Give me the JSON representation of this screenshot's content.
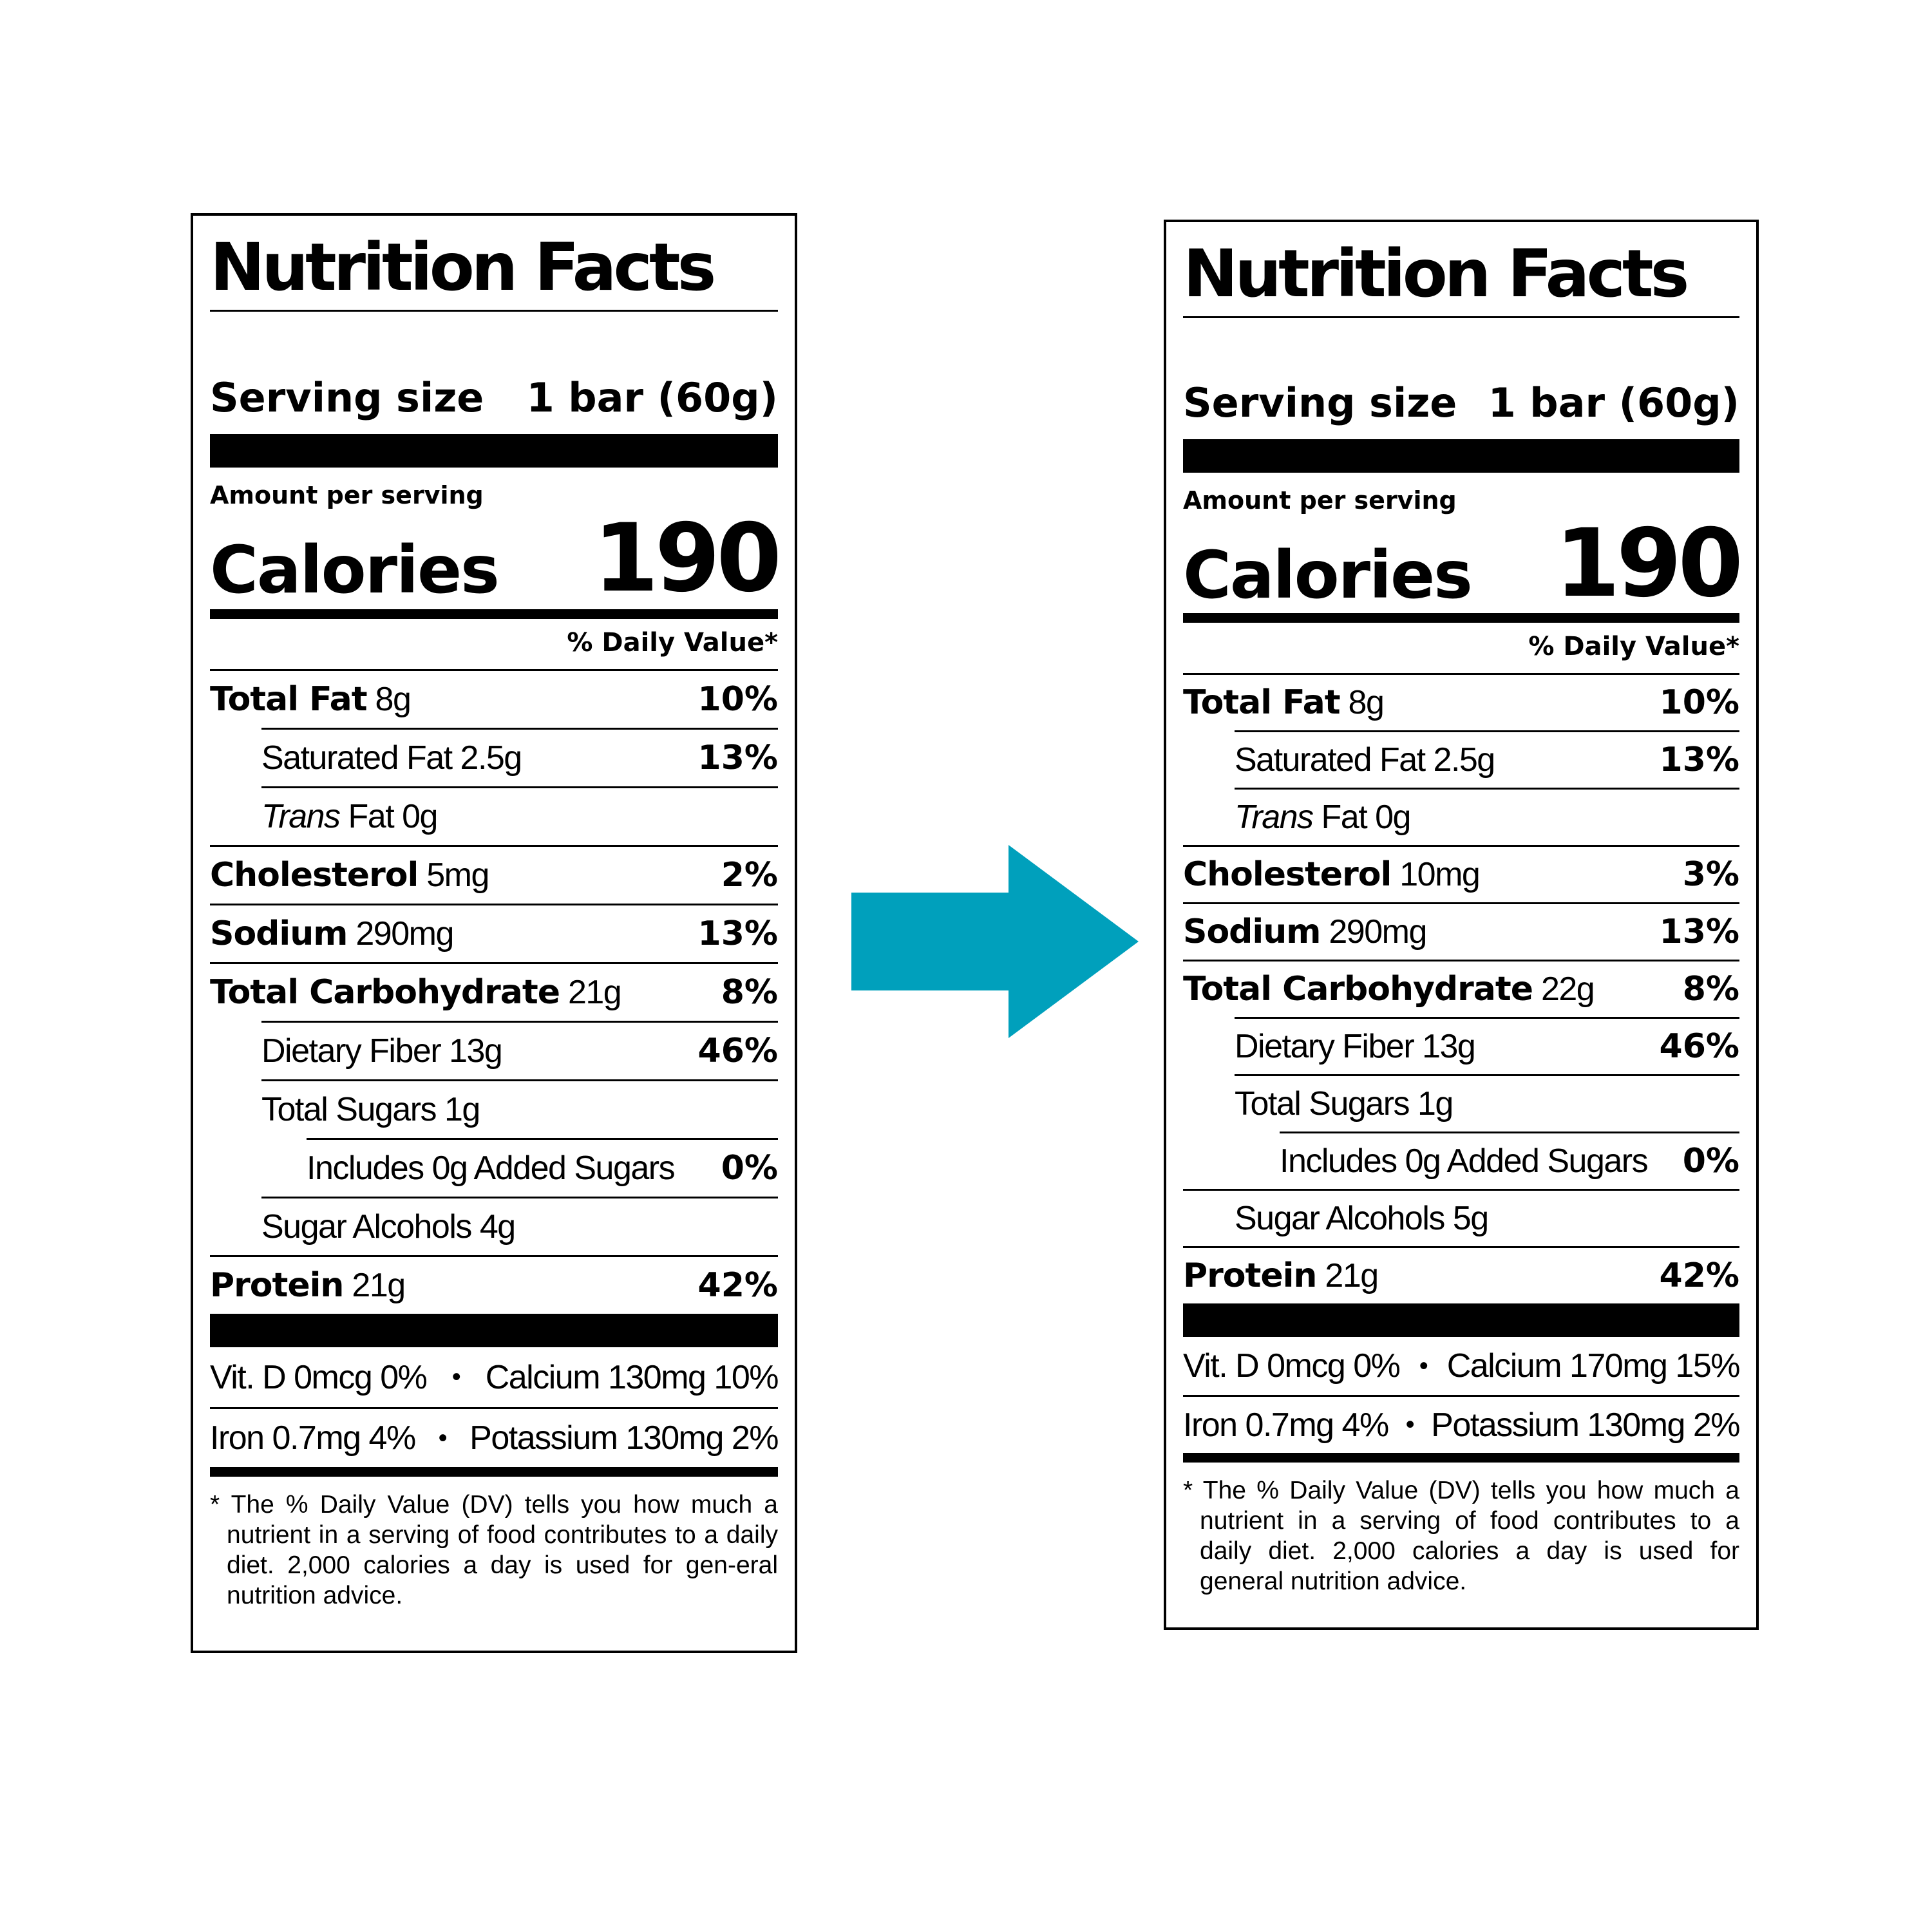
{
  "arrow": {
    "color": "#00A0BC"
  },
  "labels": {
    "left": {
      "title": "Nutrition Facts",
      "serving_label": "Serving size",
      "serving_value": "1 bar (60g)",
      "amount_per_serving": "Amount per serving",
      "calories_label": "Calories",
      "calories_value": "190",
      "dv_header": "% Daily Value*",
      "total_fat_name": "Total Fat",
      "total_fat_amount": "8g",
      "total_fat_dv": "10%",
      "sat_fat": "Saturated Fat 2.5g",
      "sat_fat_dv": "13%",
      "trans_fat_italic": "Trans",
      "trans_fat_rest": "Fat 0g",
      "cholesterol_name": "Cholesterol",
      "cholesterol_amount": "5mg",
      "cholesterol_dv": "2%",
      "sodium_name": "Sodium",
      "sodium_amount": "290mg",
      "sodium_dv": "13%",
      "carb_name": "Total Carbohydrate",
      "carb_amount": "21g",
      "carb_dv": "8%",
      "fiber": "Dietary Fiber 13g",
      "fiber_dv": "46%",
      "total_sugars": "Total Sugars 1g",
      "added_sugars": "Includes 0g Added Sugars",
      "added_sugars_dv": "0%",
      "sugar_alcohols": "Sugar Alcohols 4g",
      "protein_name": "Protein",
      "protein_amount": "21g",
      "protein_dv": "42%",
      "vit_d": "Vit. D 0mcg 0%",
      "calcium": "Calcium 130mg 10%",
      "iron": "Iron 0.7mg 4%",
      "potassium": "Potassium 130mg 2%",
      "bullet": "•",
      "footnote": "* The % Daily Value (DV) tells you how much a nutrient in a serving of food contributes to a daily diet. 2,000 calories a day is used for gen-eral nutrition advice."
    },
    "right": {
      "title": "Nutrition Facts",
      "serving_label": "Serving size",
      "serving_value": "1 bar (60g)",
      "amount_per_serving": "Amount per serving",
      "calories_label": "Calories",
      "calories_value": "190",
      "dv_header": "% Daily Value*",
      "total_fat_name": "Total Fat",
      "total_fat_amount": "8g",
      "total_fat_dv": "10%",
      "sat_fat": "Saturated Fat 2.5g",
      "sat_fat_dv": "13%",
      "trans_fat_italic": "Trans",
      "trans_fat_rest": "Fat 0g",
      "cholesterol_name": "Cholesterol",
      "cholesterol_amount": "10mg",
      "cholesterol_dv": "3%",
      "sodium_name": "Sodium",
      "sodium_amount": "290mg",
      "sodium_dv": "13%",
      "carb_name": "Total Carbohydrate",
      "carb_amount": "22g",
      "carb_dv": "8%",
      "fiber": "Dietary Fiber 13g",
      "fiber_dv": "46%",
      "total_sugars": "Total Sugars 1g",
      "added_sugars": "Includes 0g Added Sugars",
      "added_sugars_dv": "0%",
      "sugar_alcohols": "Sugar Alcohols 5g",
      "protein_name": "Protein",
      "protein_amount": "21g",
      "protein_dv": "42%",
      "vit_d": "Vit. D 0mcg 0%",
      "calcium": "Calcium 170mg 15%",
      "iron": "Iron 0.7mg 4%",
      "potassium": "Potassium 130mg 2%",
      "bullet": "•",
      "footnote": "* The % Daily Value (DV) tells you how much a nutrient in a serving of food contributes to a daily diet. 2,000 calories a day is used for general nutrition advice."
    }
  }
}
